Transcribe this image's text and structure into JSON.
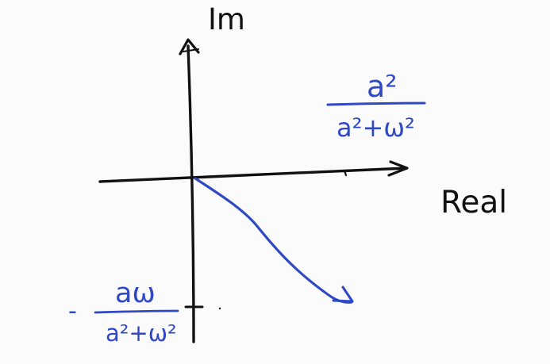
{
  "axes": {
    "y_label": "Im",
    "x_label": "Real"
  },
  "annotations": {
    "top_fraction": {
      "numerator": "a²",
      "denominator": "a²+ω²"
    },
    "bottom_fraction": {
      "sign": "-",
      "numerator": "aω",
      "denominator": "a²+ω²"
    }
  },
  "colors": {
    "ink": "#111111",
    "blue": "#2f49c4"
  }
}
